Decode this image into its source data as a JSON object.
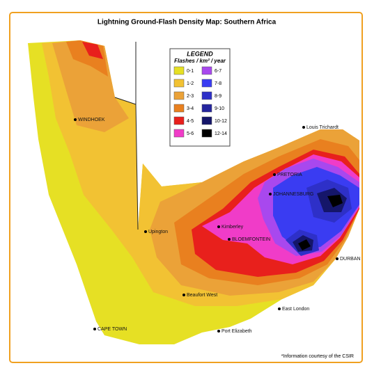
{
  "title": "Lightning Ground-Flash Density Map: Southern Africa",
  "legend": {
    "title": "LEGEND",
    "subtitle": "Flashes / km² / year",
    "items": [
      {
        "label": "0-1",
        "color": "#e6e024"
      },
      {
        "label": "1-2",
        "color": "#f2c233"
      },
      {
        "label": "2-3",
        "color": "#eba238"
      },
      {
        "label": "3-4",
        "color": "#e9801f"
      },
      {
        "label": "4-5",
        "color": "#e8201c"
      },
      {
        "label": "5-6",
        "color": "#f03cc8"
      },
      {
        "label": "6-7",
        "color": "#a848ee"
      },
      {
        "label": "7-8",
        "color": "#3a3cf2"
      },
      {
        "label": "8-9",
        "color": "#2e30c8"
      },
      {
        "label": "9-10",
        "color": "#24259e"
      },
      {
        "label": "10-12",
        "color": "#15166a"
      },
      {
        "label": "12-14",
        "color": "#000000"
      }
    ]
  },
  "cities": [
    "WINDHOEK",
    "Upington",
    "PRETORIA",
    "JOHANNESBURG",
    "Kimberley",
    "BLOEMFONTEIN",
    "DURBAN",
    "Beaufort West",
    "CAPE TOWN",
    "Port Elizabeth",
    "East London",
    "Louis Trichardt"
  ],
  "footnote": "*Information courtesy of the CSIR"
}
